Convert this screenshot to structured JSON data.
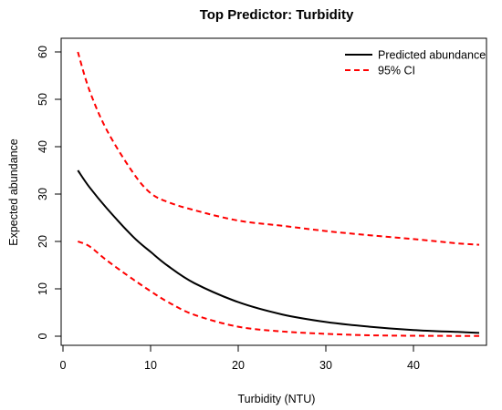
{
  "chart_data": {
    "type": "line",
    "title": "Top Predictor: Turbidity",
    "xlabel": "Turbidity (NTU)",
    "ylabel": "Expected abundance",
    "xlim": [
      0,
      48
    ],
    "ylim": [
      -2,
      62
    ],
    "xticks": [
      0,
      10,
      20,
      30,
      40
    ],
    "yticks": [
      0,
      10,
      20,
      30,
      40,
      50,
      60
    ],
    "grid": false,
    "legend_position": "top-right",
    "series": [
      {
        "name": "Predicted abundance",
        "color": "#000000",
        "style": "solid",
        "x": [
          1.7,
          3,
          5,
          8,
          10,
          12,
          15,
          20,
          25,
          30,
          35,
          40,
          45,
          47.5
        ],
        "y": [
          35,
          31.5,
          27,
          21,
          17.8,
          14.8,
          11.2,
          7.2,
          4.6,
          3.0,
          2.0,
          1.3,
          0.9,
          0.7
        ]
      },
      {
        "name": "95% CI",
        "color": "#ff0000",
        "style": "dashed",
        "x": [
          1.7,
          3,
          5,
          8,
          10,
          12,
          15,
          20,
          25,
          30,
          35,
          40,
          45,
          47.5
        ],
        "y": [
          60,
          52,
          43.5,
          34.5,
          30.2,
          28.3,
          26.6,
          24.4,
          23.3,
          22.2,
          21.3,
          20.5,
          19.6,
          19.3
        ]
      },
      {
        "name": "",
        "color": "#ff0000",
        "style": "dashed",
        "x": [
          1.7,
          3,
          5,
          8,
          10,
          12,
          15,
          20,
          25,
          30,
          35,
          40,
          45,
          47.5
        ],
        "y": [
          20,
          19,
          16,
          12,
          9.5,
          7.2,
          4.5,
          2.0,
          1.0,
          0.5,
          0.2,
          0.1,
          0.05,
          0.05
        ]
      }
    ],
    "legend": [
      {
        "label": "Predicted abundance",
        "color": "#000000",
        "style": "solid"
      },
      {
        "label": "95% CI",
        "color": "#ff0000",
        "style": "dashed"
      }
    ]
  }
}
